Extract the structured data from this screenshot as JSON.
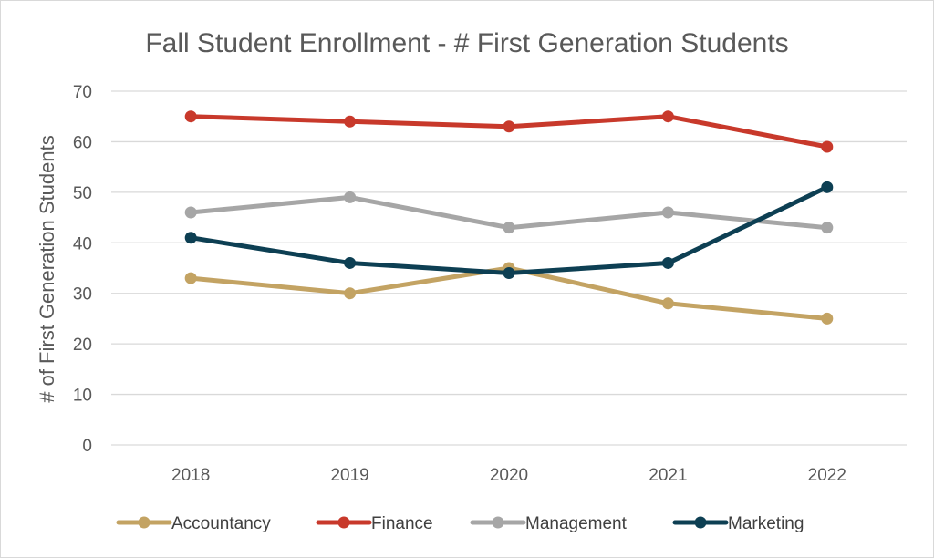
{
  "chart_data": {
    "type": "line",
    "title": "Fall Student Enrollment - # First Generation Students",
    "xlabel": "",
    "ylabel": "# of First Generation Students",
    "categories": [
      "2018",
      "2019",
      "2020",
      "2021",
      "2022"
    ],
    "ylim": [
      0,
      70
    ],
    "yticks": [
      0,
      10,
      20,
      30,
      40,
      50,
      60,
      70
    ],
    "grid": true,
    "legend_position": "bottom",
    "series": [
      {
        "name": "Accountancy",
        "color": "#C3A363",
        "values": [
          33,
          30,
          35,
          28,
          25
        ]
      },
      {
        "name": "Finance",
        "color": "#C8392B",
        "values": [
          65,
          64,
          63,
          65,
          59
        ]
      },
      {
        "name": "Management",
        "color": "#A6A6A6",
        "values": [
          46,
          49,
          43,
          46,
          43
        ]
      },
      {
        "name": "Marketing",
        "color": "#0D3F53",
        "values": [
          41,
          36,
          34,
          36,
          51
        ]
      }
    ]
  }
}
